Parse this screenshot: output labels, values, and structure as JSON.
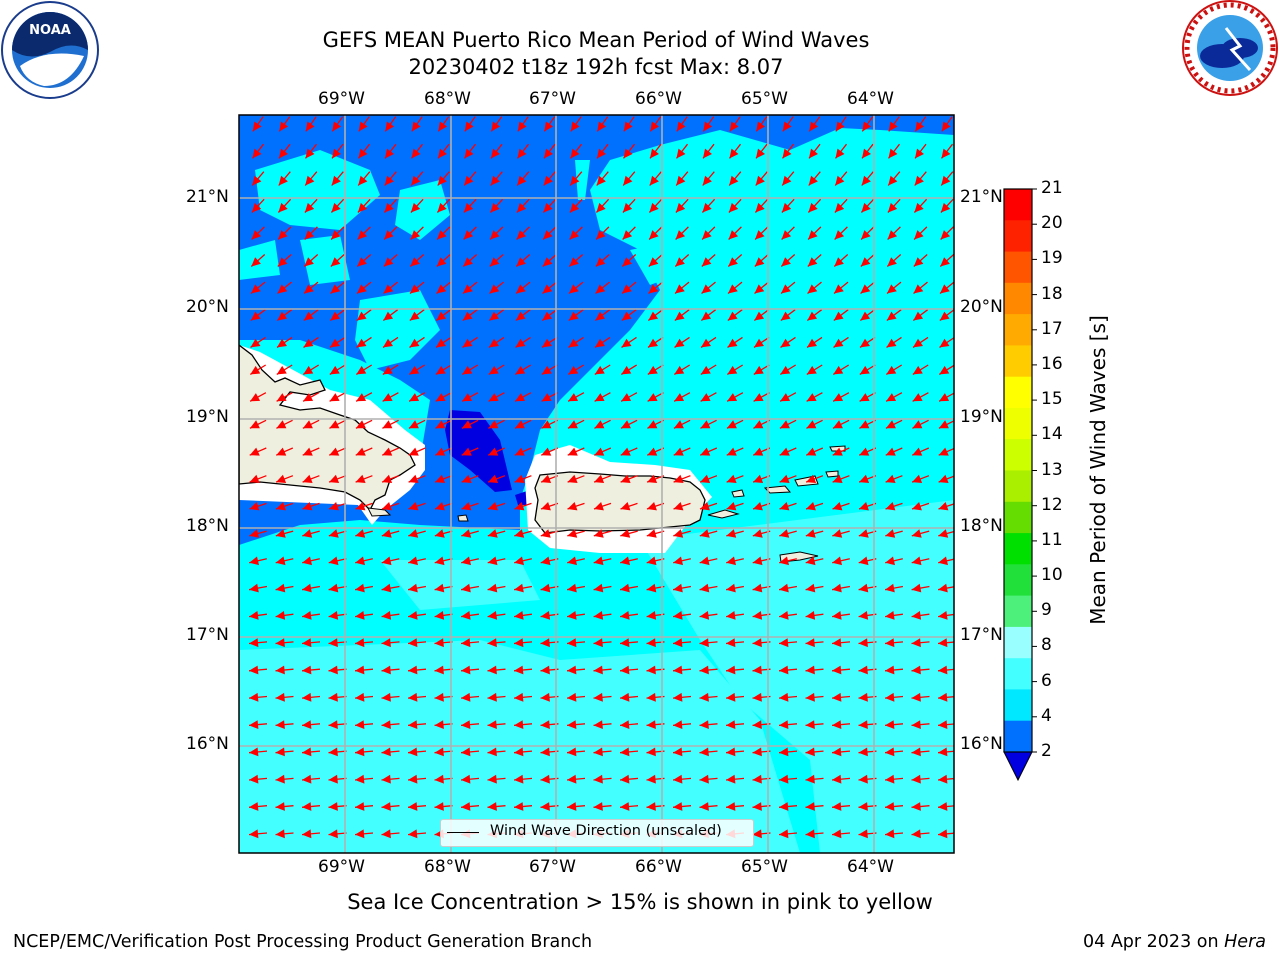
{
  "header": {
    "title_line1": "GEFS MEAN Puerto Rico Mean Period of Wind Waves",
    "title_line2": "20230402 t18z 192h fcst   Max: 8.07"
  },
  "logos": {
    "left": "noaa-logo",
    "right": "national-weather-service-logo"
  },
  "map": {
    "lon_ticks": [
      "69°W",
      "68°W",
      "67°W",
      "66°W",
      "65°W",
      "64°W"
    ],
    "lat_ticks": [
      "21°N",
      "20°N",
      "19°N",
      "18°N",
      "17°N",
      "16°N"
    ],
    "legend_label": "Wind Wave Direction (unscaled)",
    "colors": {
      "deep_blue": "#0000e0",
      "blue": "#0070ff",
      "cyan": "#00ffff",
      "light_cyan": "#44ffff",
      "land": "#efefe0",
      "ice_free_white": "#ffffff",
      "arrow": "#ff0000",
      "grid": "#b0b0b0"
    }
  },
  "colorbar": {
    "label": "Mean Period of Wind Waves [s]",
    "ticks": [
      "2",
      "4",
      "6",
      "8",
      "9",
      "10",
      "11",
      "12",
      "13",
      "14",
      "15",
      "16",
      "17",
      "18",
      "19",
      "20",
      "21"
    ],
    "colors": [
      "#0070ff",
      "#00e8ff",
      "#44ffff",
      "#99ffff",
      "#4cf07a",
      "#22e03a",
      "#00e000",
      "#66dd00",
      "#aaee00",
      "#ccff00",
      "#eeff00",
      "#ffff00",
      "#ffcc00",
      "#ffaa00",
      "#ff8800",
      "#ff5500",
      "#ff2200",
      "#ff0000"
    ],
    "under_color": "#0000e0"
  },
  "footer": {
    "note": "Sea Ice Concentration > 15% is shown in pink to yellow",
    "credit": "NCEP/EMC/Verification Post Processing Product Generation Branch",
    "date": "04 Apr 2023 on ",
    "host": "Hera"
  }
}
